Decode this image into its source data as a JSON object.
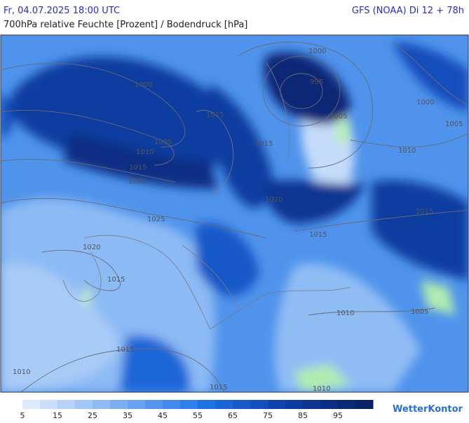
{
  "header": {
    "datetime": "Fr, 04.07.2025 18:00 UTC",
    "model": "GFS (NOAA) Di 12 + 78h",
    "subtitle": "700hPa relative Feuchte [Prozent] / Bodendruck [hPa]"
  },
  "isobar_labels": [
    "1000",
    "1005",
    "1010",
    "1015",
    "1020",
    "1025",
    "1015",
    "1015",
    "1000",
    "995",
    "1005",
    "1000",
    "1005",
    "1010",
    "1015",
    "1020",
    "1015",
    "1020",
    "1015",
    "1015",
    "1010",
    "1010",
    "1005",
    "1010",
    "1015"
  ],
  "colorbar": {
    "labels": [
      5,
      15,
      25,
      35,
      45,
      55,
      65,
      75,
      85,
      95
    ],
    "colors": [
      "#dde9fc",
      "#cadefb",
      "#b6d2f9",
      "#a3c6f7",
      "#90baf5",
      "#7daef3",
      "#69a2f1",
      "#5696ef",
      "#428aed",
      "#2f7eeb",
      "#1f72e6",
      "#1a66d8",
      "#165aca",
      "#124ebc",
      "#0f44ae",
      "#0d3ca0",
      "#0c3592",
      "#0b2e84",
      "#0a2876",
      "#0a2268"
    ]
  },
  "logo": "WetterKontor"
}
